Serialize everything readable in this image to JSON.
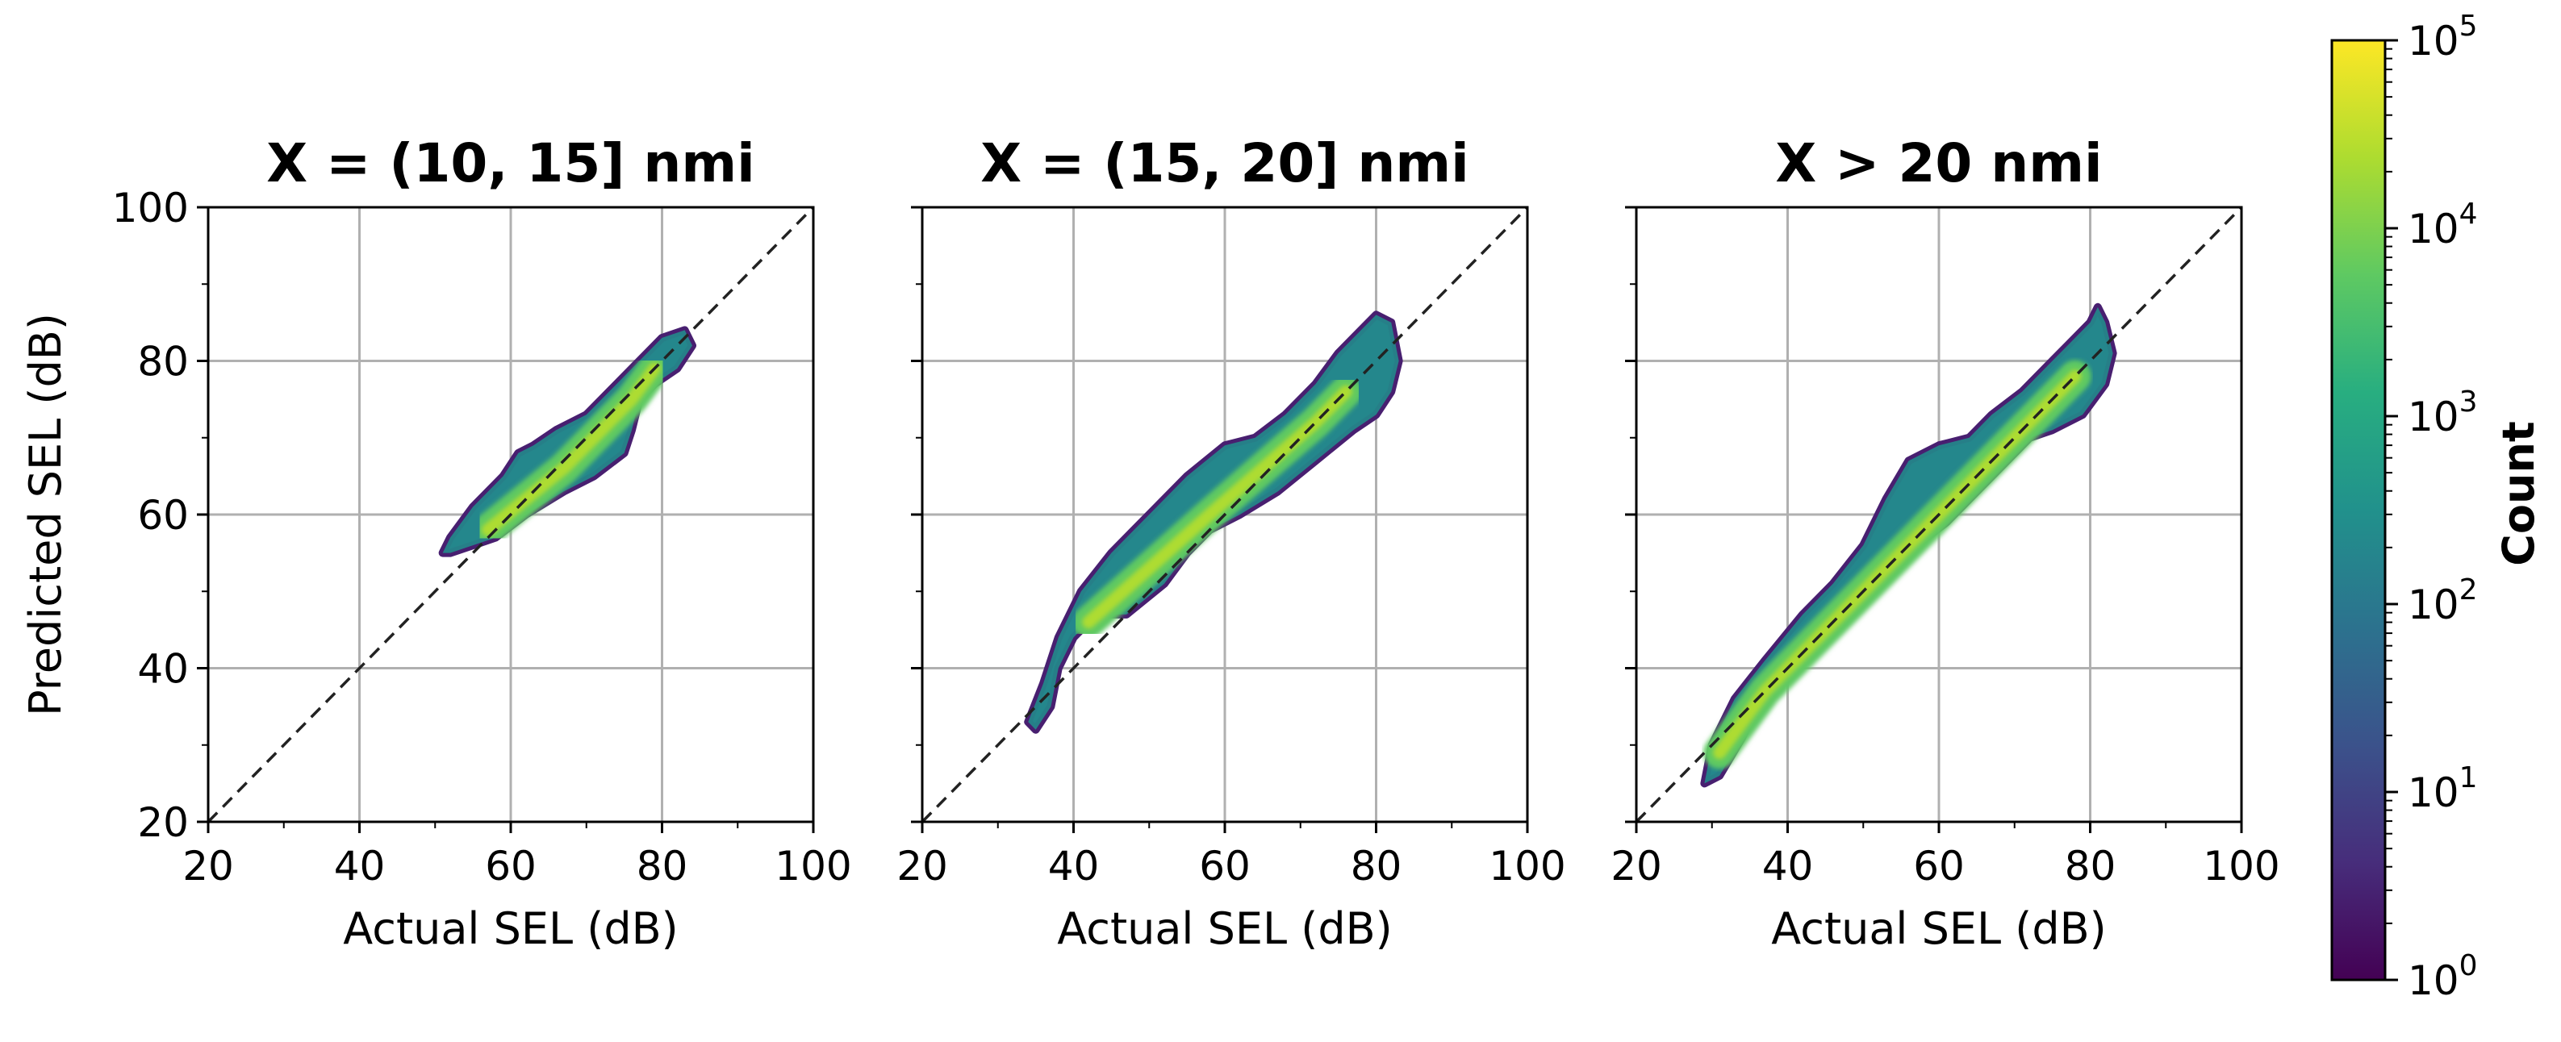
{
  "chart_data": [
    {
      "type": "heatmap",
      "title": "X = (10, 15] nmi",
      "xlabel": "Actual SEL (dB)",
      "ylabel": "Predicted SEL (dB)",
      "xlim": [
        20,
        100
      ],
      "ylim": [
        20,
        100
      ],
      "xticks": [
        20,
        40,
        60,
        80,
        100
      ],
      "yticks": [
        20,
        40,
        60,
        80,
        100
      ],
      "grid": true,
      "reference_line": "y = x (dashed)",
      "density_outline": [
        [
          51,
          55
        ],
        [
          52,
          57
        ],
        [
          55,
          61
        ],
        [
          59,
          65
        ],
        [
          61,
          68
        ],
        [
          63,
          69
        ],
        [
          66,
          71
        ],
        [
          70,
          73
        ],
        [
          73,
          76
        ],
        [
          77,
          80
        ],
        [
          80,
          83
        ],
        [
          83,
          84
        ],
        [
          84,
          82
        ],
        [
          82,
          79
        ],
        [
          79,
          77
        ],
        [
          77,
          75
        ],
        [
          76,
          71
        ],
        [
          75,
          68
        ],
        [
          71,
          65
        ],
        [
          67,
          63
        ],
        [
          62,
          60
        ],
        [
          58,
          57
        ],
        [
          55,
          56
        ],
        [
          52,
          55
        ]
      ],
      "peak_ridge": [
        [
          57,
          58
        ],
        [
          62,
          62
        ],
        [
          67,
          66
        ],
        [
          72,
          71
        ],
        [
          76,
          75
        ],
        [
          79,
          79
        ]
      ]
    },
    {
      "type": "heatmap",
      "title": "X = (15, 20] nmi",
      "xlabel": "Actual SEL (dB)",
      "ylabel": "",
      "xlim": [
        20,
        100
      ],
      "ylim": [
        20,
        100
      ],
      "xticks": [
        20,
        40,
        60,
        80,
        100
      ],
      "yticks": [
        20,
        40,
        60,
        80,
        100
      ],
      "grid": true,
      "reference_line": "y = x (dashed)",
      "density_outline": [
        [
          34,
          33
        ],
        [
          36,
          38
        ],
        [
          38,
          44
        ],
        [
          41,
          50
        ],
        [
          45,
          55
        ],
        [
          50,
          60
        ],
        [
          55,
          65
        ],
        [
          60,
          69
        ],
        [
          64,
          70
        ],
        [
          68,
          73
        ],
        [
          72,
          77
        ],
        [
          75,
          81
        ],
        [
          78,
          84
        ],
        [
          80,
          86
        ],
        [
          82,
          85
        ],
        [
          83,
          80
        ],
        [
          82,
          76
        ],
        [
          80,
          73
        ],
        [
          77,
          71
        ],
        [
          72,
          67
        ],
        [
          67,
          63
        ],
        [
          62,
          60
        ],
        [
          58,
          58
        ],
        [
          55,
          55
        ],
        [
          52,
          51
        ],
        [
          47,
          47
        ],
        [
          43,
          47
        ],
        [
          40,
          44
        ],
        [
          38,
          40
        ],
        [
          37,
          35
        ],
        [
          35,
          32
        ]
      ],
      "peak_ridge": [
        [
          42,
          46
        ],
        [
          50,
          53
        ],
        [
          58,
          60
        ],
        [
          65,
          66
        ],
        [
          72,
          72
        ],
        [
          76,
          76
        ]
      ]
    },
    {
      "type": "heatmap",
      "title": "X > 20 nmi",
      "xlabel": "Actual SEL (dB)",
      "ylabel": "",
      "xlim": [
        20,
        100
      ],
      "ylim": [
        20,
        100
      ],
      "xticks": [
        20,
        40,
        60,
        80,
        100
      ],
      "yticks": [
        20,
        40,
        60,
        80,
        100
      ],
      "grid": true,
      "reference_line": "y = x (dashed)",
      "density_outline": [
        [
          29,
          25
        ],
        [
          30,
          30
        ],
        [
          33,
          36
        ],
        [
          37,
          41
        ],
        [
          42,
          47
        ],
        [
          46,
          51
        ],
        [
          50,
          56
        ],
        [
          53,
          62
        ],
        [
          56,
          67
        ],
        [
          60,
          69
        ],
        [
          64,
          70
        ],
        [
          67,
          73
        ],
        [
          71,
          76
        ],
        [
          74,
          79
        ],
        [
          77,
          82
        ],
        [
          80,
          85
        ],
        [
          81,
          87
        ],
        [
          82,
          85
        ],
        [
          83,
          81
        ],
        [
          82,
          77
        ],
        [
          79,
          73
        ],
        [
          75,
          71
        ],
        [
          72,
          70
        ],
        [
          69,
          67
        ],
        [
          65,
          63
        ],
        [
          61,
          59
        ],
        [
          57,
          56
        ],
        [
          53,
          54
        ],
        [
          49,
          50
        ],
        [
          44,
          46
        ],
        [
          40,
          42
        ],
        [
          37,
          37
        ],
        [
          34,
          31
        ],
        [
          31,
          26
        ]
      ],
      "peak_ridge": [
        [
          31,
          29
        ],
        [
          37,
          37
        ],
        [
          44,
          44
        ],
        [
          51,
          51
        ],
        [
          58,
          58
        ],
        [
          65,
          65
        ],
        [
          72,
          72
        ],
        [
          78,
          78
        ]
      ]
    }
  ],
  "colorbar": {
    "label": "Count",
    "scale": "log",
    "range": [
      1,
      100000
    ],
    "tick_labels": [
      {
        "base": "10",
        "exp": "0"
      },
      {
        "base": "10",
        "exp": "1"
      },
      {
        "base": "10",
        "exp": "2"
      },
      {
        "base": "10",
        "exp": "3"
      },
      {
        "base": "10",
        "exp": "4"
      },
      {
        "base": "10",
        "exp": "5"
      }
    ],
    "colormap": [
      "#440154",
      "#472d7b",
      "#3b528b",
      "#2c728e",
      "#21918c",
      "#28ae80",
      "#5ec962",
      "#addc30",
      "#fde725"
    ]
  }
}
